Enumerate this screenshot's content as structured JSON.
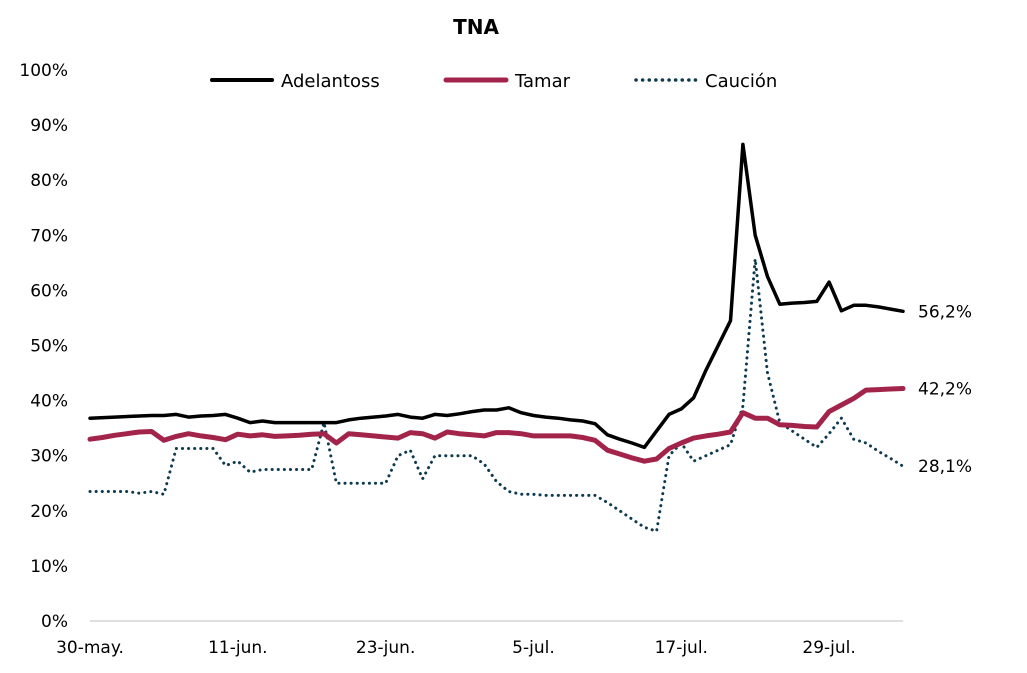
{
  "chart_data": {
    "type": "line",
    "title": "TNA",
    "xlabel": "",
    "ylabel": "",
    "ylim": [
      0,
      100
    ],
    "y_ticks": [
      "0%",
      "10%",
      "20%",
      "30%",
      "40%",
      "50%",
      "60%",
      "70%",
      "80%",
      "90%",
      "100%"
    ],
    "x_tick_labels": [
      "30-may.",
      "11-jun.",
      "23-jun.",
      "5-jul.",
      "17-jul.",
      "29-jul."
    ],
    "x_tick_days": [
      0,
      12,
      24,
      36,
      48,
      60
    ],
    "xlim_days": [
      0,
      66
    ],
    "legend_position": "top",
    "grid": false,
    "series": [
      {
        "name": "Adelantoss",
        "color": "#000000",
        "style": "solid",
        "end_label": "56,2%",
        "points": [
          [
            0,
            36.8
          ],
          [
            2,
            37.0
          ],
          [
            4,
            37.2
          ],
          [
            5,
            37.3
          ],
          [
            6,
            37.3
          ],
          [
            7,
            37.5
          ],
          [
            8,
            37.0
          ],
          [
            9,
            37.2
          ],
          [
            10,
            37.3
          ],
          [
            11,
            37.5
          ],
          [
            12,
            36.8
          ],
          [
            13,
            36.0
          ],
          [
            14,
            36.3
          ],
          [
            15,
            36.0
          ],
          [
            16,
            36.0
          ],
          [
            17,
            36.0
          ],
          [
            18,
            36.0
          ],
          [
            19,
            36.0
          ],
          [
            20,
            36.0
          ],
          [
            21,
            36.5
          ],
          [
            22,
            36.8
          ],
          [
            23,
            37.0
          ],
          [
            24,
            37.2
          ],
          [
            25,
            37.5
          ],
          [
            26,
            37.0
          ],
          [
            27,
            36.8
          ],
          [
            28,
            37.5
          ],
          [
            29,
            37.3
          ],
          [
            30,
            37.6
          ],
          [
            31,
            38.0
          ],
          [
            32,
            38.3
          ],
          [
            33,
            38.3
          ],
          [
            34,
            38.7
          ],
          [
            35,
            37.8
          ],
          [
            36,
            37.3
          ],
          [
            37,
            37.0
          ],
          [
            38,
            36.8
          ],
          [
            39,
            36.5
          ],
          [
            40,
            36.3
          ],
          [
            41,
            35.8
          ],
          [
            42,
            33.8
          ],
          [
            43,
            33.0
          ],
          [
            44,
            32.3
          ],
          [
            45,
            31.5
          ],
          [
            46,
            34.5
          ],
          [
            47,
            37.5
          ],
          [
            48,
            38.5
          ],
          [
            49,
            40.5
          ],
          [
            50,
            45.5
          ],
          [
            51,
            50.0
          ],
          [
            52,
            54.5
          ],
          [
            53,
            86.5
          ],
          [
            54,
            70.0
          ],
          [
            55,
            62.5
          ],
          [
            56,
            57.5
          ],
          [
            57,
            57.7
          ],
          [
            58,
            57.8
          ],
          [
            59,
            58.0
          ],
          [
            60,
            61.5
          ],
          [
            61,
            56.3
          ],
          [
            62,
            57.3
          ],
          [
            63,
            57.3
          ],
          [
            64,
            57.0
          ],
          [
            65,
            56.6
          ],
          [
            66,
            56.2
          ]
        ]
      },
      {
        "name": "Tamar",
        "color": "#a3244a",
        "style": "solid",
        "end_label": "42,2%",
        "points": [
          [
            0,
            33.0
          ],
          [
            1,
            33.3
          ],
          [
            2,
            33.7
          ],
          [
            3,
            34.0
          ],
          [
            4,
            34.3
          ],
          [
            5,
            34.4
          ],
          [
            6,
            32.8
          ],
          [
            7,
            33.5
          ],
          [
            8,
            34.0
          ],
          [
            9,
            33.6
          ],
          [
            10,
            33.3
          ],
          [
            11,
            32.9
          ],
          [
            12,
            33.9
          ],
          [
            13,
            33.6
          ],
          [
            14,
            33.8
          ],
          [
            15,
            33.5
          ],
          [
            16,
            33.6
          ],
          [
            17,
            33.7
          ],
          [
            18,
            33.9
          ],
          [
            19,
            34.0
          ],
          [
            20,
            32.3
          ],
          [
            21,
            34.0
          ],
          [
            22,
            33.8
          ],
          [
            23,
            33.6
          ],
          [
            24,
            33.4
          ],
          [
            25,
            33.2
          ],
          [
            26,
            34.2
          ],
          [
            27,
            34.0
          ],
          [
            28,
            33.2
          ],
          [
            29,
            34.3
          ],
          [
            30,
            34.0
          ],
          [
            31,
            33.8
          ],
          [
            32,
            33.6
          ],
          [
            33,
            34.2
          ],
          [
            34,
            34.2
          ],
          [
            35,
            34.0
          ],
          [
            36,
            33.6
          ],
          [
            37,
            33.6
          ],
          [
            38,
            33.6
          ],
          [
            39,
            33.6
          ],
          [
            40,
            33.3
          ],
          [
            41,
            32.8
          ],
          [
            42,
            31.0
          ],
          [
            43,
            30.3
          ],
          [
            44,
            29.6
          ],
          [
            45,
            29.0
          ],
          [
            46,
            29.4
          ],
          [
            47,
            31.3
          ],
          [
            48,
            32.3
          ],
          [
            49,
            33.2
          ],
          [
            50,
            33.6
          ],
          [
            51,
            33.9
          ],
          [
            52,
            34.3
          ],
          [
            53,
            37.8
          ],
          [
            54,
            36.8
          ],
          [
            55,
            36.8
          ],
          [
            56,
            35.6
          ],
          [
            57,
            35.5
          ],
          [
            58,
            35.3
          ],
          [
            59,
            35.2
          ],
          [
            60,
            38.0
          ],
          [
            61,
            39.2
          ],
          [
            62,
            40.4
          ],
          [
            63,
            41.9
          ],
          [
            64,
            42.0
          ],
          [
            65,
            42.1
          ],
          [
            66,
            42.2
          ]
        ]
      },
      {
        "name": "Caución",
        "color": "#0d3a4e",
        "style": "dotted",
        "end_label": "28,1%",
        "points": [
          [
            0,
            23.5
          ],
          [
            1,
            23.5
          ],
          [
            2,
            23.5
          ],
          [
            3,
            23.5
          ],
          [
            4,
            23.2
          ],
          [
            5,
            23.5
          ],
          [
            6,
            23.0
          ],
          [
            7,
            31.3
          ],
          [
            8,
            31.3
          ],
          [
            9,
            31.3
          ],
          [
            10,
            31.3
          ],
          [
            11,
            28.2
          ],
          [
            12,
            29.0
          ],
          [
            13,
            27.0
          ],
          [
            14,
            27.5
          ],
          [
            15,
            27.5
          ],
          [
            16,
            27.5
          ],
          [
            17,
            27.5
          ],
          [
            18,
            27.5
          ],
          [
            19,
            36.0
          ],
          [
            20,
            25.0
          ],
          [
            21,
            25.0
          ],
          [
            22,
            25.0
          ],
          [
            23,
            25.0
          ],
          [
            24,
            25.0
          ],
          [
            25,
            30.0
          ],
          [
            26,
            31.0
          ],
          [
            27,
            25.8
          ],
          [
            28,
            30.0
          ],
          [
            29,
            30.0
          ],
          [
            30,
            30.0
          ],
          [
            31,
            30.0
          ],
          [
            32,
            28.5
          ],
          [
            33,
            25.3
          ],
          [
            34,
            23.5
          ],
          [
            35,
            23.0
          ],
          [
            36,
            23.0
          ],
          [
            37,
            22.8
          ],
          [
            38,
            22.8
          ],
          [
            39,
            22.8
          ],
          [
            40,
            22.8
          ],
          [
            41,
            22.8
          ],
          [
            42,
            21.5
          ],
          [
            43,
            20.0
          ],
          [
            44,
            18.5
          ],
          [
            45,
            17.0
          ],
          [
            46,
            16.3
          ],
          [
            47,
            30.0
          ],
          [
            48,
            32.3
          ],
          [
            49,
            29.0
          ],
          [
            50,
            30.0
          ],
          [
            51,
            31.0
          ],
          [
            52,
            32.0
          ],
          [
            53,
            39.0
          ],
          [
            54,
            65.7
          ],
          [
            55,
            45.0
          ],
          [
            56,
            36.0
          ],
          [
            57,
            34.5
          ],
          [
            58,
            33.0
          ],
          [
            59,
            31.5
          ],
          [
            60,
            34.0
          ],
          [
            61,
            36.8
          ],
          [
            62,
            33.0
          ],
          [
            63,
            32.3
          ],
          [
            64,
            30.8
          ],
          [
            65,
            29.5
          ],
          [
            66,
            28.1
          ]
        ]
      }
    ]
  }
}
